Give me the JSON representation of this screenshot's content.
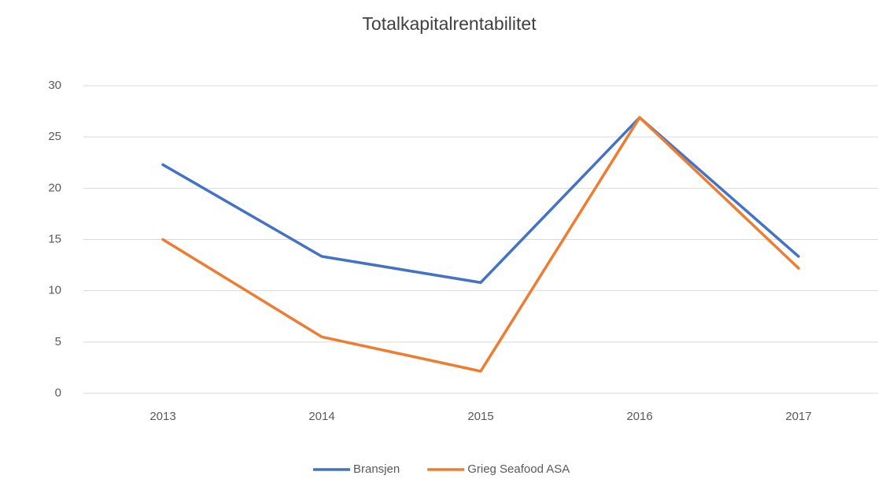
{
  "chart_data": {
    "type": "line",
    "title": "Totalkapitalrentabilitet",
    "categories": [
      "2013",
      "2014",
      "2015",
      "2016",
      "2017"
    ],
    "series": [
      {
        "name": "Bransjen",
        "color": "#4472c4",
        "values": [
          22.3,
          13.35,
          10.8,
          26.9,
          13.35
        ]
      },
      {
        "name": "Grieg Seafood ASA",
        "color": "#ed7d31",
        "values": [
          15.0,
          5.5,
          2.15,
          26.9,
          12.2
        ]
      }
    ],
    "ylim": [
      0,
      30
    ],
    "yticks": [
      0,
      5,
      10,
      15,
      20,
      25,
      30
    ],
    "grid": true,
    "legend": "bottom"
  }
}
